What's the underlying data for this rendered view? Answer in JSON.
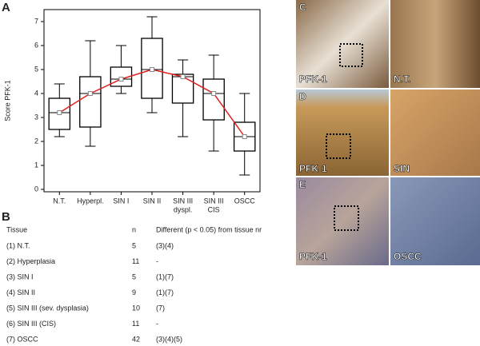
{
  "chart_data": {
    "type": "box",
    "panel_label": "A",
    "ylabel": "Score PFK-1",
    "categories": [
      [
        "N.T."
      ],
      [
        "Hyperpl."
      ],
      [
        "SIN I"
      ],
      [
        "SIN II"
      ],
      [
        "SIN III",
        "dyspl."
      ],
      [
        "SIN III",
        "CIS"
      ],
      [
        "OSCC"
      ]
    ],
    "whisker_low": [
      2.2,
      1.8,
      4.0,
      3.2,
      2.2,
      1.6,
      0.6
    ],
    "q1": [
      2.5,
      2.6,
      4.3,
      3.8,
      3.6,
      2.9,
      1.6
    ],
    "median": [
      3.2,
      4.0,
      4.6,
      5.0,
      4.7,
      4.0,
      2.2
    ],
    "q3": [
      3.8,
      4.7,
      5.1,
      6.3,
      4.8,
      4.6,
      2.8
    ],
    "whisker_high": [
      4.4,
      6.2,
      6.0,
      7.2,
      5.4,
      5.6,
      4.0
    ],
    "mean": [
      3.2,
      4.0,
      4.6,
      5.0,
      4.7,
      4.0,
      2.2
    ],
    "mean_color": "#e02020",
    "ylim": [
      -0.1,
      7.5
    ],
    "yticks": [
      0,
      1,
      2,
      3,
      4,
      5,
      6,
      7
    ]
  },
  "table": {
    "panel_label": "B",
    "header": [
      "Tissue",
      "n",
      "Different (p < 0.05) from tissue nr"
    ],
    "rows": [
      [
        "(1) N.T.",
        "5",
        "(3)(4)"
      ],
      [
        "(2) Hyperplasia",
        "11",
        "-"
      ],
      [
        "(3) SIN I",
        "5",
        "(1)(7)"
      ],
      [
        "(4) SIN II",
        "9",
        "(1)(7)"
      ],
      [
        "(5) SIN III (sev. dysplasia)",
        "10",
        "(7)"
      ],
      [
        "(6) SIN III (CIS)",
        "11",
        "-"
      ],
      [
        "(7) OSCC",
        "42",
        "(3)(4)(5)"
      ]
    ]
  },
  "images": [
    {
      "panel_label": "C",
      "left_label": "PFK-1",
      "right_label": "N.T."
    },
    {
      "panel_label": "D",
      "left_label": "PFK-1",
      "right_label": "SIN"
    },
    {
      "panel_label": "E",
      "left_label": "PFK-1",
      "right_label": "OSCC"
    }
  ]
}
